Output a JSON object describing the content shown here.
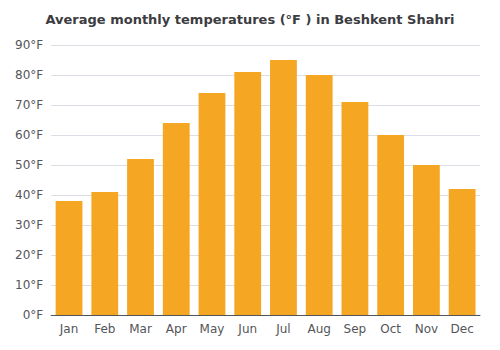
{
  "chart_data": {
    "type": "bar",
    "title": "Average monthly temperatures (°F ) in Beshkent Shahri",
    "categories": [
      "Jan",
      "Feb",
      "Mar",
      "Apr",
      "May",
      "Jun",
      "Jul",
      "Aug",
      "Sep",
      "Oct",
      "Nov",
      "Dec"
    ],
    "values": [
      38,
      41,
      52,
      64,
      74,
      81,
      85,
      80,
      71,
      60,
      50,
      42
    ],
    "color": "#F5A623",
    "ylim": [
      0,
      90
    ],
    "yticks": [
      {
        "value": 0,
        "label": "0°F"
      },
      {
        "value": 10,
        "label": "10°F"
      },
      {
        "value": 20,
        "label": "20°F"
      },
      {
        "value": 30,
        "label": "30°F"
      },
      {
        "value": 40,
        "label": "40°F"
      },
      {
        "value": 50,
        "label": "50°F"
      },
      {
        "value": 60,
        "label": "60°F"
      },
      {
        "value": 70,
        "label": "70°F"
      },
      {
        "value": 80,
        "label": "80°F"
      },
      {
        "value": 90,
        "label": "90°F"
      }
    ],
    "grid": true
  }
}
